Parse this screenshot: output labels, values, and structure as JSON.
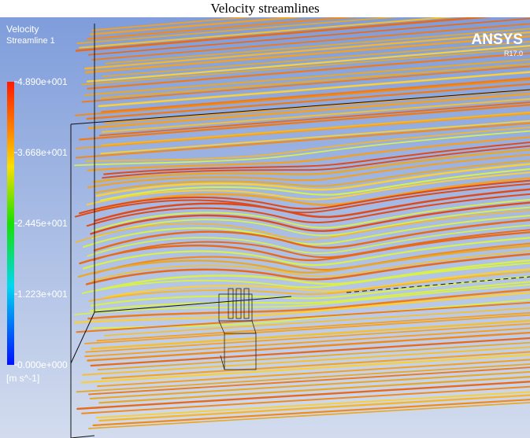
{
  "header": {
    "title": "Velocity streamlines"
  },
  "legend": {
    "variable": "Velocity",
    "object": "Streamline 1",
    "ticks": [
      "4.890e+001",
      "3.668e+001",
      "2.445e+001",
      "1.223e+001",
      "0.000e+000"
    ],
    "unit": "[m s^-1]"
  },
  "logo": {
    "brand": "ANSYS",
    "version": "R17.0"
  }
}
